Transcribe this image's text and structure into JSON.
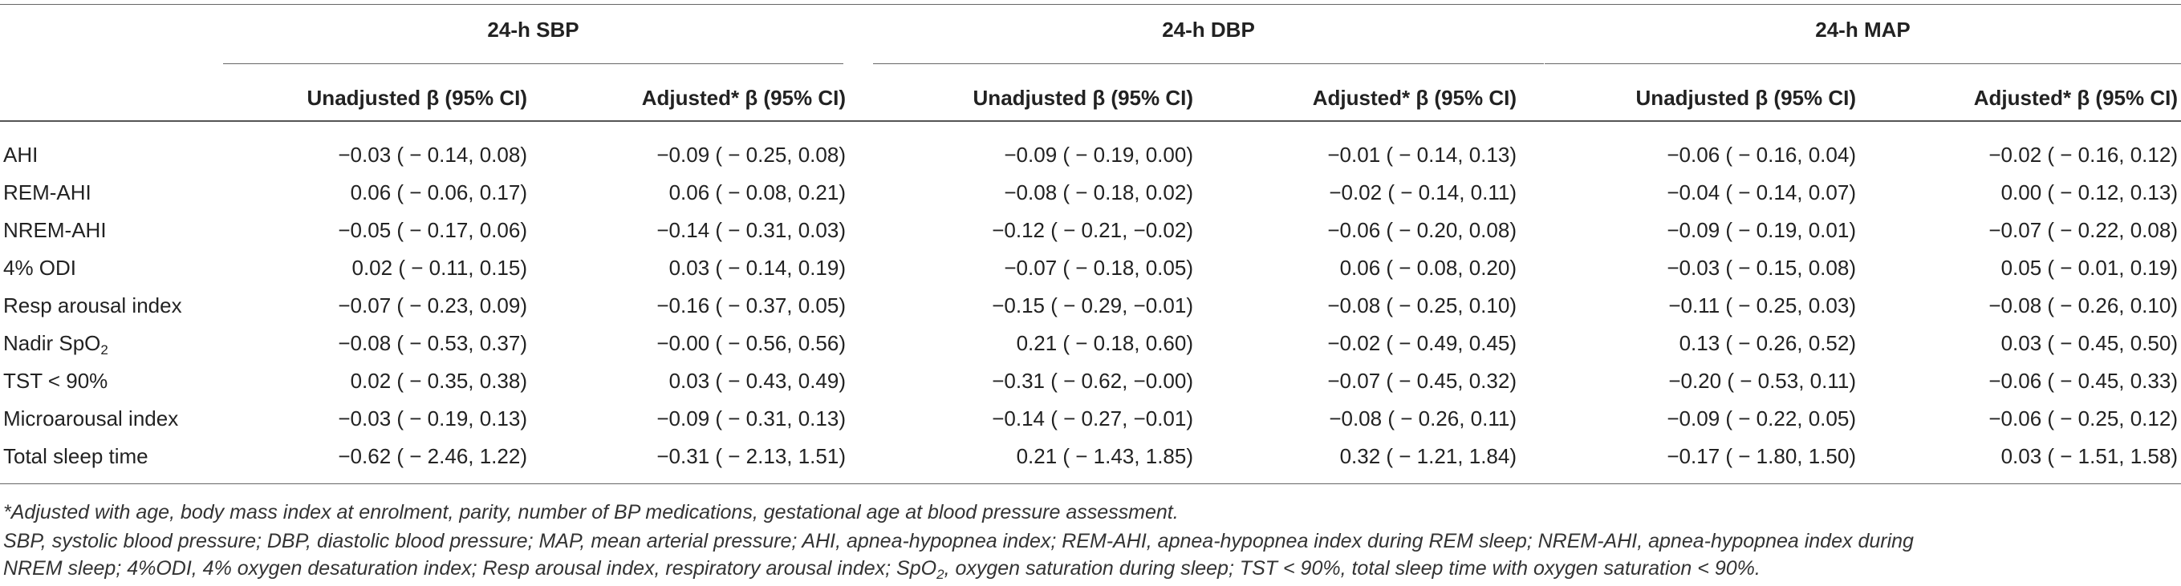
{
  "groups": [
    "24-h SBP",
    "24-h DBP",
    "24-h MAP"
  ],
  "subheaders": [
    "Unadjusted β (95% CI)",
    "Adjusted* β (95% CI)",
    "Unadjusted β (95% CI)",
    "Adjusted* β (95% CI)",
    "Unadjusted β (95% CI)",
    "Adjusted* β (95% CI)"
  ],
  "rows": [
    {
      "label": "AHI",
      "v": [
        "−0.03 ( − 0.14, 0.08)",
        "−0.09 ( − 0.25, 0.08)",
        "−0.09 ( − 0.19, 0.00)",
        "−0.01 ( − 0.14, 0.13)",
        "−0.06 ( − 0.16, 0.04)",
        "−0.02 ( − 0.16, 0.12)"
      ]
    },
    {
      "label": "REM-AHI",
      "v": [
        "0.06 ( − 0.06, 0.17)",
        "0.06 ( − 0.08, 0.21)",
        "−0.08 ( − 0.18, 0.02)",
        "−0.02 ( − 0.14, 0.11)",
        "−0.04 ( − 0.14, 0.07)",
        "0.00 ( − 0.12, 0.13)"
      ]
    },
    {
      "label": "NREM-AHI",
      "v": [
        "−0.05 ( − 0.17, 0.06)",
        "−0.14 ( − 0.31, 0.03)",
        "−0.12 ( − 0.21, −0.02)",
        "−0.06 ( − 0.20, 0.08)",
        "−0.09 ( − 0.19, 0.01)",
        "−0.07 ( − 0.22, 0.08)"
      ]
    },
    {
      "label": "4% ODI",
      "v": [
        "0.02 ( − 0.11, 0.15)",
        "0.03 ( − 0.14, 0.19)",
        "−0.07 ( − 0.18, 0.05)",
        "0.06 ( − 0.08, 0.20)",
        "−0.03 ( − 0.15, 0.08)",
        "0.05 ( − 0.01, 0.19)"
      ]
    },
    {
      "label": "Resp arousal index",
      "v": [
        "−0.07 ( − 0.23, 0.09)",
        "−0.16 ( − 0.37, 0.05)",
        "−0.15 ( − 0.29, −0.01)",
        "−0.08 ( − 0.25, 0.10)",
        "−0.11 ( − 0.25, 0.03)",
        "−0.08 ( − 0.26, 0.10)"
      ]
    },
    {
      "label": "Nadir SpO",
      "sub": "2",
      "v": [
        "−0.08 ( − 0.53, 0.37)",
        "−0.00 ( − 0.56, 0.56)",
        "0.21 ( − 0.18, 0.60)",
        "−0.02 ( − 0.49, 0.45)",
        "0.13 ( − 0.26, 0.52)",
        "0.03 ( − 0.45, 0.50)"
      ]
    },
    {
      "label": "TST < 90%",
      "v": [
        "0.02 ( − 0.35, 0.38)",
        "0.03 ( − 0.43, 0.49)",
        "−0.31 ( − 0.62, −0.00)",
        "−0.07 ( − 0.45, 0.32)",
        "−0.20 ( − 0.53, 0.11)",
        "−0.06 ( − 0.45, 0.33)"
      ]
    },
    {
      "label": "Microarousal index",
      "v": [
        "−0.03 ( − 0.19, 0.13)",
        "−0.09 ( − 0.31, 0.13)",
        "−0.14 ( − 0.27, −0.01)",
        "−0.08 ( − 0.26, 0.11)",
        "−0.09 ( − 0.22, 0.05)",
        "−0.06 ( − 0.25, 0.12)"
      ]
    },
    {
      "label": "Total sleep time",
      "v": [
        "−0.62 ( − 2.46, 1.22)",
        "−0.31 ( − 2.13, 1.51)",
        "0.21 ( − 1.43, 1.85)",
        "0.32 ( − 1.21, 1.84)",
        "−0.17 ( − 1.80, 1.50)",
        "0.03 ( − 1.51, 1.58)"
      ]
    }
  ],
  "footnotes": {
    "adjusted": "*Adjusted with age, body mass index at enrolment, parity, number of BP medications, gestational age at blood pressure assessment.",
    "abbrev_line1": "SBP, systolic blood pressure; DBP, diastolic blood pressure; MAP, mean arterial pressure; AHI, apnea-hypopnea index; REM-AHI, apnea-hypopnea index during REM sleep; NREM-AHI, apnea-hypopnea index during",
    "abbrev_line2_a": "NREM sleep; 4%ODI, 4% oxygen desaturation index; Resp arousal index, respiratory arousal index; SpO",
    "abbrev_line2_sub": "2",
    "abbrev_line2_b": ", oxygen saturation during sleep; TST < 90%, total sleep time with oxygen saturation < 90%."
  }
}
